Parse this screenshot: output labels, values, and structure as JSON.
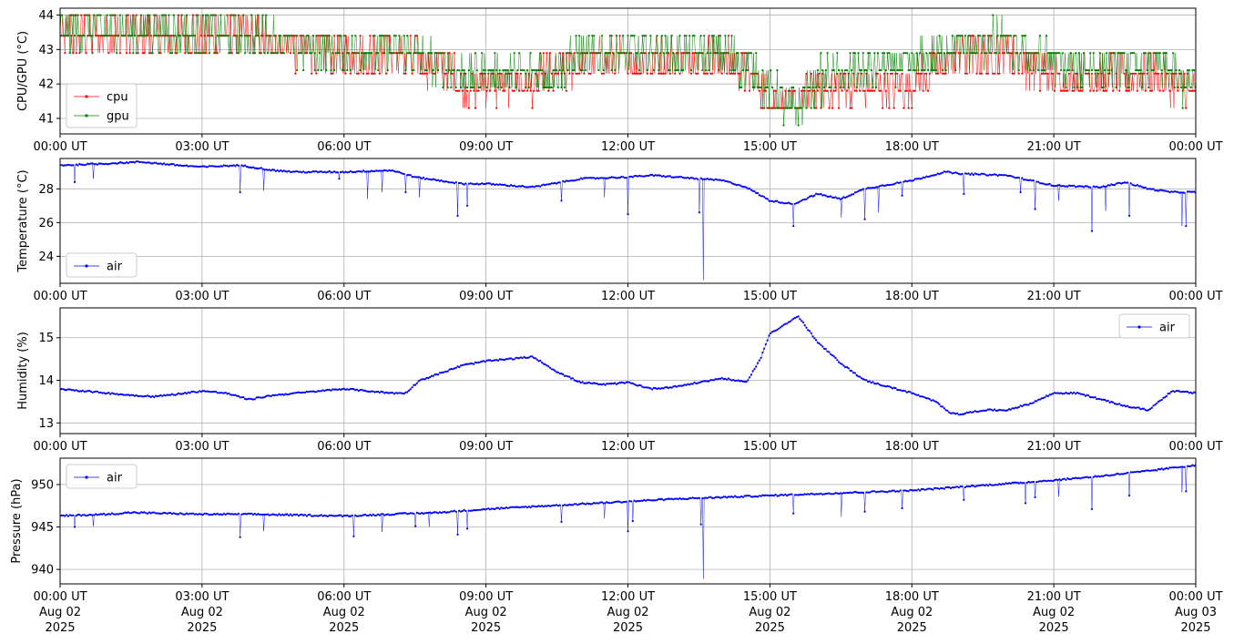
{
  "figure": {
    "date_line": "Aug 02",
    "date_line_end": "Aug 03",
    "year_line": "2025"
  },
  "colors": {
    "cpu": "#ff0000",
    "gpu": "#008000",
    "air": "#0000ff",
    "grid": "#b0b0b0"
  },
  "chart_data": [
    {
      "type": "line",
      "ylabel": "CPU/GPU (°C)",
      "ylim": [
        40.55,
        44.2
      ],
      "yticks": [
        "41",
        "42",
        "43",
        "44"
      ],
      "xlim_hours": [
        0,
        24
      ],
      "xticks": [
        "00:00 UT",
        "03:00 UT",
        "06:00 UT",
        "09:00 UT",
        "12:00 UT",
        "15:00 UT",
        "18:00 UT",
        "21:00 UT",
        "00:00 UT"
      ],
      "legend": {
        "placement": "lower-left",
        "entries": [
          "cpu",
          "gpu"
        ]
      },
      "grid": true,
      "series": [
        {
          "name": "cpu",
          "color": "red",
          "quantized": [
            41.3,
            41.8,
            42.3,
            42.9,
            43.4,
            44.0
          ],
          "x": [
            0,
            1,
            2,
            3,
            4,
            5,
            6,
            7,
            8,
            8.5,
            9,
            10,
            11,
            12,
            13,
            14,
            14.7,
            15,
            15.5,
            16,
            17,
            18,
            18.7,
            19,
            20,
            21,
            22,
            23,
            23.5,
            24
          ],
          "y": [
            43.4,
            43.4,
            43.4,
            43.4,
            43.4,
            43.1,
            42.9,
            42.9,
            42.5,
            42.0,
            42.0,
            42.0,
            42.6,
            42.7,
            42.7,
            42.7,
            42.2,
            41.5,
            41.3,
            41.9,
            41.9,
            42.0,
            42.6,
            42.8,
            42.9,
            42.2,
            42.2,
            42.3,
            42.0,
            41.7
          ]
        },
        {
          "name": "gpu",
          "color": "green",
          "quantized": [
            40.8,
            41.3,
            41.9,
            42.4,
            42.9,
            43.4,
            44.0
          ],
          "x": [
            0,
            1,
            2,
            3,
            4,
            5,
            6,
            7,
            8,
            8.5,
            9,
            10,
            11,
            12,
            13,
            14,
            14.7,
            15,
            15.5,
            16,
            17,
            18,
            18.7,
            19,
            20,
            21,
            22,
            23,
            23.5,
            24
          ],
          "y": [
            43.6,
            43.6,
            43.5,
            43.5,
            43.4,
            43.1,
            42.9,
            43.0,
            42.6,
            42.3,
            42.2,
            42.3,
            42.8,
            42.9,
            42.9,
            42.8,
            42.5,
            41.8,
            41.2,
            42.1,
            42.4,
            42.6,
            43.0,
            43.1,
            43.2,
            42.6,
            42.5,
            42.6,
            42.3,
            41.9
          ]
        }
      ]
    },
    {
      "type": "line",
      "ylabel": "Temperature (°C)",
      "ylim": [
        22.4,
        29.8
      ],
      "yticks": [
        "24",
        "26",
        "28"
      ],
      "xlim_hours": [
        0,
        24
      ],
      "xticks": [
        "00:00 UT",
        "03:00 UT",
        "06:00 UT",
        "09:00 UT",
        "12:00 UT",
        "15:00 UT",
        "18:00 UT",
        "21:00 UT",
        "00:00 UT"
      ],
      "legend": {
        "placement": "lower-left",
        "entries": [
          "air"
        ]
      },
      "grid": true,
      "series": [
        {
          "name": "air",
          "color": "blue",
          "x": [
            0,
            1,
            1.7,
            2.5,
            3,
            3.8,
            4.5,
            5,
            6,
            7,
            7.5,
            8,
            8.5,
            9,
            9.5,
            10,
            11,
            12,
            12.5,
            13,
            14,
            14.5,
            15,
            15.5,
            16,
            16.5,
            17,
            18,
            18.7,
            19,
            20,
            20.5,
            21,
            22,
            22.5,
            23,
            23.5,
            24
          ],
          "y": [
            29.4,
            29.5,
            29.6,
            29.4,
            29.3,
            29.4,
            29.1,
            29.0,
            29.0,
            29.1,
            28.7,
            28.5,
            28.3,
            28.3,
            28.2,
            28.1,
            28.6,
            28.7,
            28.8,
            28.7,
            28.5,
            28.1,
            27.3,
            27.1,
            27.7,
            27.4,
            28.0,
            28.5,
            29.0,
            28.9,
            28.8,
            28.5,
            28.2,
            28.1,
            28.4,
            28.0,
            27.8,
            27.8
          ],
          "dips": [
            [
              0.3,
              28.4
            ],
            [
              0.7,
              28.6
            ],
            [
              3.8,
              27.8
            ],
            [
              4.3,
              27.9
            ],
            [
              5.9,
              28.6
            ],
            [
              6.5,
              27.4
            ],
            [
              6.8,
              27.8
            ],
            [
              7.3,
              27.8
            ],
            [
              7.6,
              27.5
            ],
            [
              8.4,
              26.4
            ],
            [
              8.6,
              27.0
            ],
            [
              10.6,
              27.3
            ],
            [
              11.5,
              27.5
            ],
            [
              12.0,
              26.5
            ],
            [
              13.6,
              22.6
            ],
            [
              13.5,
              26.6
            ],
            [
              15.5,
              25.8
            ],
            [
              16.5,
              26.3
            ],
            [
              17.0,
              26.2
            ],
            [
              17.3,
              26.6
            ],
            [
              17.8,
              27.6
            ],
            [
              19.1,
              27.7
            ],
            [
              20.3,
              27.8
            ],
            [
              20.6,
              26.8
            ],
            [
              21.1,
              27.3
            ],
            [
              21.8,
              25.5
            ],
            [
              22.1,
              26.7
            ],
            [
              22.6,
              26.4
            ],
            [
              23.7,
              25.8
            ],
            [
              23.8,
              25.8
            ]
          ]
        }
      ]
    },
    {
      "type": "line",
      "ylabel": "Humidity (%)",
      "ylim": [
        12.75,
        15.7
      ],
      "yticks": [
        "13",
        "14",
        "15"
      ],
      "xlim_hours": [
        0,
        24
      ],
      "xticks": [
        "00:00 UT",
        "03:00 UT",
        "06:00 UT",
        "09:00 UT",
        "12:00 UT",
        "15:00 UT",
        "18:00 UT",
        "21:00 UT",
        "00:00 UT"
      ],
      "legend": {
        "placement": "upper-right",
        "entries": [
          "air"
        ]
      },
      "grid": true,
      "series": [
        {
          "name": "air",
          "color": "blue",
          "x": [
            0,
            0.5,
            1,
            1.5,
            2,
            2.5,
            3,
            3.5,
            4,
            4.5,
            5,
            5.5,
            6,
            6.5,
            7,
            7.3,
            7.6,
            8,
            8.5,
            9,
            9.5,
            10,
            10.5,
            11,
            11.5,
            12,
            12.5,
            13,
            13.5,
            14,
            14.5,
            14.8,
            15,
            15.3,
            15.6,
            16,
            16.5,
            17,
            17.5,
            18,
            18.5,
            18.8,
            19,
            19.5,
            20,
            20.5,
            21,
            21.5,
            22,
            22.5,
            23,
            23.5,
            24
          ],
          "y": [
            13.8,
            13.75,
            13.7,
            13.65,
            13.62,
            13.68,
            13.75,
            13.7,
            13.55,
            13.65,
            13.7,
            13.75,
            13.8,
            13.75,
            13.7,
            13.7,
            14.0,
            14.15,
            14.35,
            14.45,
            14.5,
            14.55,
            14.2,
            13.95,
            13.9,
            13.95,
            13.8,
            13.85,
            13.95,
            14.05,
            13.95,
            14.5,
            15.1,
            15.3,
            15.5,
            14.9,
            14.4,
            14.0,
            13.85,
            13.7,
            13.5,
            13.25,
            13.2,
            13.3,
            13.3,
            13.45,
            13.7,
            13.7,
            13.55,
            13.4,
            13.3,
            13.75,
            13.7
          ]
        }
      ]
    },
    {
      "type": "line",
      "ylabel": "Pressure (hPa)",
      "ylim": [
        938.3,
        953.1
      ],
      "yticks": [
        "940",
        "945",
        "950"
      ],
      "xlim_hours": [
        0,
        24
      ],
      "xticks": [
        "00:00 UT",
        "03:00 UT",
        "06:00 UT",
        "09:00 UT",
        "12:00 UT",
        "15:00 UT",
        "18:00 UT",
        "21:00 UT",
        "00:00 UT"
      ],
      "legend": {
        "placement": "upper-left",
        "entries": [
          "air"
        ]
      },
      "grid": true,
      "series": [
        {
          "name": "air",
          "color": "blue",
          "x": [
            0,
            1,
            1.5,
            3,
            4,
            5,
            6,
            7,
            8,
            9,
            10,
            11,
            12,
            13,
            14,
            15,
            16,
            17,
            18,
            19,
            20,
            21,
            22,
            23,
            24
          ],
          "y": [
            946.3,
            946.5,
            946.7,
            946.5,
            946.5,
            946.4,
            946.3,
            946.5,
            946.7,
            947.1,
            947.4,
            947.7,
            948.0,
            948.3,
            948.5,
            948.7,
            948.9,
            949.1,
            949.3,
            949.7,
            950.1,
            950.5,
            951.0,
            951.6,
            952.3
          ],
          "dips": [
            [
              0.3,
              945.0
            ],
            [
              0.7,
              945.1
            ],
            [
              3.8,
              943.8
            ],
            [
              4.3,
              944.5
            ],
            [
              6.2,
              943.9
            ],
            [
              6.8,
              944.4
            ],
            [
              7.5,
              945.1
            ],
            [
              7.8,
              945.0
            ],
            [
              8.4,
              944.1
            ],
            [
              8.6,
              944.8
            ],
            [
              10.6,
              945.6
            ],
            [
              11.5,
              946.0
            ],
            [
              12.0,
              944.5
            ],
            [
              12.1,
              945.7
            ],
            [
              13.6,
              938.9
            ],
            [
              13.55,
              945.3
            ],
            [
              15.5,
              946.6
            ],
            [
              16.5,
              946.2
            ],
            [
              17.0,
              946.8
            ],
            [
              17.8,
              947.2
            ],
            [
              19.1,
              948.2
            ],
            [
              20.4,
              947.8
            ],
            [
              20.6,
              948.5
            ],
            [
              21.1,
              948.6
            ],
            [
              21.8,
              947.1
            ],
            [
              22.6,
              948.7
            ],
            [
              23.7,
              949.1
            ],
            [
              23.8,
              949.2
            ]
          ]
        }
      ]
    }
  ]
}
